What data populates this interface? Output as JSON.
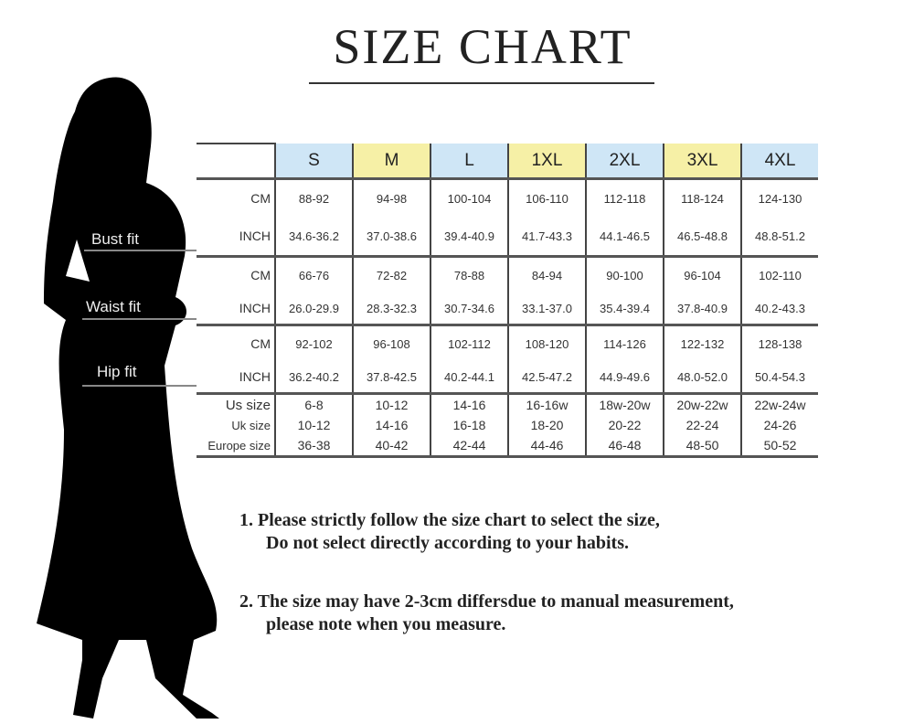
{
  "title": "SIZE CHART",
  "fit_labels": {
    "bust": "Bust fit",
    "waist": "Waist fit",
    "hip": "Hip fit"
  },
  "sizes": [
    "S",
    "M",
    "L",
    "1XL",
    "2XL",
    "3XL",
    "4XL"
  ],
  "size_colors": [
    "#cfe6f6",
    "#f6f0a6",
    "#cfe6f6",
    "#f6f0a6",
    "#cfe6f6",
    "#f6f0a6",
    "#cfe6f6"
  ],
  "rows": [
    {
      "label": "CM",
      "values": [
        "88-92",
        "94-98",
        "100-104",
        "106-110",
        "112-118",
        "118-124",
        "124-130"
      ]
    },
    {
      "label": "INCH",
      "values": [
        "34.6-36.2",
        "37.0-38.6",
        "39.4-40.9",
        "41.7-43.3",
        "44.1-46.5",
        "46.5-48.8",
        "48.8-51.2"
      ]
    },
    {
      "label": "CM",
      "values": [
        "66-76",
        "72-82",
        "78-88",
        "84-94",
        "90-100",
        "96-104",
        "102-110"
      ]
    },
    {
      "label": "INCH",
      "values": [
        "26.0-29.9",
        "28.3-32.3",
        "30.7-34.6",
        "33.1-37.0",
        "35.4-39.4",
        "37.8-40.9",
        "40.2-43.3"
      ]
    },
    {
      "label": "CM",
      "values": [
        "92-102",
        "96-108",
        "102-112",
        "108-120",
        "114-126",
        "122-132",
        "128-138"
      ]
    },
    {
      "label": "INCH",
      "values": [
        "36.2-40.2",
        "37.8-42.5",
        "40.2-44.1",
        "42.5-47.2",
        "44.9-49.6",
        "48.0-52.0",
        "50.4-54.3"
      ]
    },
    {
      "label": "Us size",
      "values": [
        "6-8",
        "10-12",
        "14-16",
        "16-16w",
        "18w-20w",
        "20w-22w",
        "22w-24w"
      ]
    },
    {
      "label": "Uk size",
      "values": [
        "10-12",
        "14-16",
        "16-18",
        "18-20",
        "20-22",
        "22-24",
        "24-26"
      ]
    },
    {
      "label": "Europe size",
      "values": [
        "36-38",
        "40-42",
        "42-44",
        "44-46",
        "46-48",
        "48-50",
        "50-52"
      ]
    }
  ],
  "notes": [
    {
      "line1": "1.  Please strictly follow the size chart to select the size,",
      "line2": "Do not select directly according to your habits."
    },
    {
      "line1": "2.  The size may have 2-3cm differsdue to manual measurement,",
      "line2": "please note when you measure."
    }
  ]
}
